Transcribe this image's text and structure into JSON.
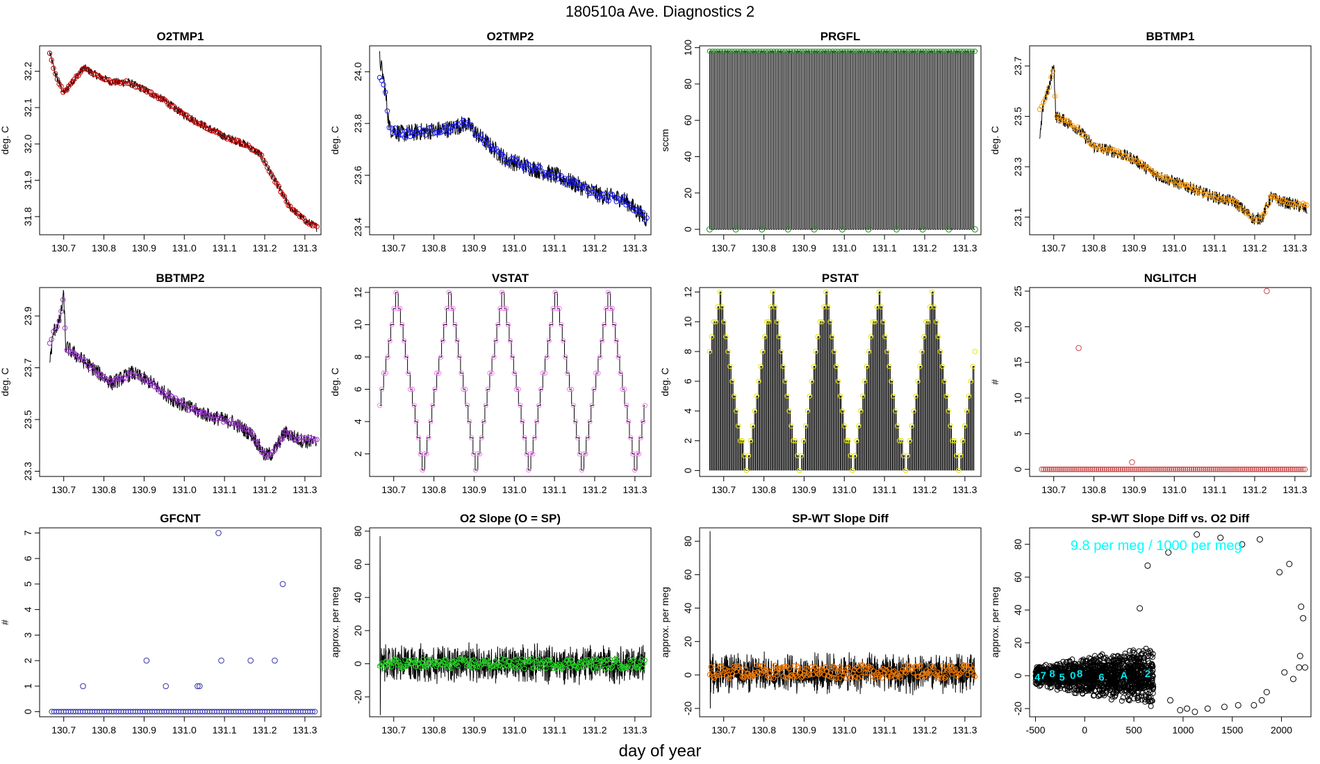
{
  "page": {
    "title": "180510a   Ave. Diagnostics 2",
    "xlabel": "day of year"
  },
  "chart_data": [
    {
      "type": "line",
      "title": "O2TMP1",
      "ylabel": "deg. C",
      "xlim": [
        130.64,
        131.34
      ],
      "ylim": [
        31.75,
        32.27
      ],
      "xticks": [
        "130.7",
        "130.8",
        "130.9",
        "131.0",
        "131.1",
        "131.2",
        "131.3"
      ],
      "yticks": [
        "31.8",
        "31.9",
        "32.0",
        "32.1",
        "32.2"
      ],
      "series": [
        {
          "name": "raw",
          "color": "#000000",
          "noise": 0.012,
          "style": "line",
          "x": [
            130.665,
            130.68,
            130.7,
            130.72,
            130.75,
            130.78,
            130.82,
            130.86,
            130.9,
            130.95,
            131.0,
            131.05,
            131.1,
            131.15,
            131.19,
            131.22,
            131.26,
            131.3,
            131.33
          ],
          "y": [
            32.25,
            32.19,
            32.14,
            32.17,
            32.21,
            32.19,
            32.17,
            32.17,
            32.15,
            32.12,
            32.08,
            32.05,
            32.02,
            32.0,
            31.97,
            31.91,
            31.83,
            31.79,
            31.77
          ]
        },
        {
          "name": "avg",
          "color": "#cc0000",
          "noise": 0.004,
          "style": "dense",
          "x": [
            130.665,
            130.68,
            130.7,
            130.72,
            130.75,
            130.78,
            130.82,
            130.86,
            130.9,
            130.95,
            131.0,
            131.05,
            131.1,
            131.15,
            131.19,
            131.22,
            131.26,
            131.3,
            131.33
          ],
          "y": [
            32.25,
            32.19,
            32.14,
            32.17,
            32.21,
            32.19,
            32.17,
            32.17,
            32.15,
            32.12,
            32.08,
            32.05,
            32.02,
            32.0,
            31.97,
            31.91,
            31.83,
            31.79,
            31.77
          ]
        }
      ]
    },
    {
      "type": "line",
      "title": "O2TMP2",
      "ylabel": "deg. C",
      "xlim": [
        130.64,
        131.34
      ],
      "ylim": [
        23.37,
        24.1
      ],
      "xticks": [
        "130.7",
        "130.8",
        "130.9",
        "131.0",
        "131.1",
        "131.2",
        "131.3"
      ],
      "yticks": [
        "23.4",
        "23.6",
        "23.8",
        "24.0"
      ],
      "series": [
        {
          "name": "raw",
          "color": "#000000",
          "noise": 0.035,
          "style": "line",
          "x": [
            130.665,
            130.675,
            130.69,
            130.72,
            130.78,
            130.84,
            130.88,
            130.92,
            130.98,
            131.04,
            131.1,
            131.16,
            131.22,
            131.27,
            131.3,
            131.33
          ],
          "y": [
            24.05,
            23.97,
            23.78,
            23.76,
            23.77,
            23.78,
            23.8,
            23.74,
            23.66,
            23.63,
            23.6,
            23.56,
            23.52,
            23.51,
            23.47,
            23.43
          ]
        },
        {
          "name": "avg",
          "color": "#1a1aff",
          "noise": 0.015,
          "style": "dense",
          "x": [
            130.665,
            130.675,
            130.69,
            130.72,
            130.78,
            130.84,
            130.88,
            130.92,
            130.98,
            131.04,
            131.1,
            131.16,
            131.22,
            131.27,
            131.3,
            131.33
          ],
          "y": [
            23.98,
            23.96,
            23.78,
            23.76,
            23.77,
            23.78,
            23.8,
            23.74,
            23.66,
            23.63,
            23.6,
            23.56,
            23.52,
            23.51,
            23.47,
            23.43
          ]
        }
      ]
    },
    {
      "type": "line",
      "title": "PRGFL",
      "ylabel": "sccm",
      "xlim": [
        130.64,
        131.34
      ],
      "ylim": [
        -3,
        101
      ],
      "xticks": [
        "130.7",
        "130.8",
        "130.9",
        "131.0",
        "131.1",
        "131.2",
        "131.3"
      ],
      "yticks": [
        "0",
        "20",
        "40",
        "60",
        "80",
        "100"
      ],
      "series": [
        {
          "name": "flow",
          "color": "#000000",
          "style": "square",
          "x_start": 130.665,
          "x_end": 131.325,
          "cycles": 110,
          "low": 0,
          "high": 98
        },
        {
          "name": "points",
          "color": "#228b22",
          "style": "points_top",
          "x_start": 130.665,
          "x_end": 131.325,
          "value": 98
        },
        {
          "name": "lows",
          "color": "#228b22",
          "style": "points_list",
          "x": [
            130.665,
            130.73,
            130.795,
            130.86,
            130.925,
            130.995,
            131.06,
            131.13,
            131.195,
            131.26,
            131.325
          ],
          "y": [
            0,
            0,
            0,
            0,
            0,
            0,
            0,
            0,
            0,
            0,
            0
          ]
        }
      ]
    },
    {
      "type": "line",
      "title": "BBTMP1",
      "ylabel": "deg. C",
      "xlim": [
        130.64,
        131.34
      ],
      "ylim": [
        23.03,
        23.78
      ],
      "xticks": [
        "130.7",
        "130.8",
        "130.9",
        "131.0",
        "131.1",
        "131.2",
        "131.3"
      ],
      "yticks": [
        "23.1",
        "23.3",
        "23.5",
        "23.7"
      ],
      "series": [
        {
          "name": "raw",
          "color": "#000000",
          "noise": 0.025,
          "style": "line",
          "x": [
            130.665,
            130.675,
            130.69,
            130.7,
            130.705,
            130.72,
            130.76,
            130.8,
            130.85,
            130.9,
            130.95,
            131.0,
            131.05,
            131.1,
            131.15,
            131.2,
            131.22,
            131.24,
            131.27,
            131.3,
            131.33
          ],
          "y": [
            23.4,
            23.56,
            23.62,
            23.72,
            23.5,
            23.49,
            23.45,
            23.38,
            23.36,
            23.33,
            23.27,
            23.24,
            23.21,
            23.18,
            23.16,
            23.09,
            23.1,
            23.18,
            23.16,
            23.15,
            23.13
          ]
        },
        {
          "name": "avg",
          "color": "#ff9900",
          "noise": 0.008,
          "style": "dense",
          "x": [
            130.665,
            130.675,
            130.69,
            130.7,
            130.705,
            130.72,
            130.76,
            130.8,
            130.85,
            130.9,
            130.95,
            131.0,
            131.05,
            131.1,
            131.15,
            131.2,
            131.22,
            131.24,
            131.27,
            131.3,
            131.33
          ],
          "y": [
            23.52,
            23.56,
            23.62,
            23.7,
            23.5,
            23.49,
            23.45,
            23.38,
            23.36,
            23.33,
            23.27,
            23.24,
            23.21,
            23.18,
            23.16,
            23.09,
            23.1,
            23.18,
            23.16,
            23.15,
            23.15
          ]
        }
      ]
    },
    {
      "type": "line",
      "title": "BBTMP2",
      "ylabel": "deg. C",
      "xlim": [
        130.64,
        131.34
      ],
      "ylim": [
        23.28,
        24.01
      ],
      "xticks": [
        "130.7",
        "130.8",
        "130.9",
        "131.0",
        "131.1",
        "131.2",
        "131.3"
      ],
      "yticks": [
        "23.3",
        "23.5",
        "23.7",
        "23.9"
      ],
      "series": [
        {
          "name": "raw",
          "color": "#000000",
          "noise": 0.03,
          "style": "line",
          "x": [
            130.665,
            130.675,
            130.69,
            130.7,
            130.705,
            130.73,
            130.77,
            130.82,
            130.87,
            130.92,
            130.97,
            131.02,
            131.07,
            131.12,
            131.17,
            131.2,
            131.22,
            131.25,
            131.29,
            131.33
          ],
          "y": [
            23.72,
            23.84,
            23.88,
            23.98,
            23.78,
            23.75,
            23.7,
            23.64,
            23.68,
            23.64,
            23.58,
            23.54,
            23.51,
            23.49,
            23.44,
            23.36,
            23.37,
            23.45,
            23.42,
            23.41
          ]
        },
        {
          "name": "avg",
          "color": "#9933cc",
          "noise": 0.01,
          "style": "dense",
          "x": [
            130.665,
            130.675,
            130.69,
            130.7,
            130.705,
            130.73,
            130.77,
            130.82,
            130.87,
            130.92,
            130.97,
            131.02,
            131.07,
            131.12,
            131.17,
            131.2,
            131.22,
            131.25,
            131.29,
            131.33
          ],
          "y": [
            23.8,
            23.84,
            23.88,
            23.97,
            23.78,
            23.75,
            23.7,
            23.64,
            23.68,
            23.64,
            23.58,
            23.54,
            23.51,
            23.49,
            23.44,
            23.36,
            23.37,
            23.45,
            23.42,
            23.43
          ]
        }
      ]
    },
    {
      "type": "line",
      "title": "VSTAT",
      "ylabel": "deg. C",
      "xlim": [
        130.64,
        131.34
      ],
      "ylim": [
        0.6,
        12.3
      ],
      "xticks": [
        "130.7",
        "130.8",
        "130.9",
        "131.0",
        "131.1",
        "131.2",
        "131.3"
      ],
      "yticks": [
        "2",
        "4",
        "6",
        "8",
        "10",
        "12"
      ],
      "series": [
        {
          "name": "steps",
          "color": "#000000",
          "style": "triangle_steps",
          "x_start": 130.665,
          "x_end": 131.325,
          "cycles": 5,
          "phase": 0.18,
          "min": 1,
          "max": 12
        },
        {
          "name": "points",
          "color": "#ee82ee",
          "style": "triangle_points",
          "x_start": 130.665,
          "x_end": 131.325,
          "cycles": 5,
          "phase": 0.18,
          "min": 1,
          "max": 12
        }
      ]
    },
    {
      "type": "line",
      "title": "PSTAT",
      "ylabel": "deg. C",
      "xlim": [
        130.64,
        131.34
      ],
      "ylim": [
        -0.4,
        12.3
      ],
      "xticks": [
        "130.7",
        "130.8",
        "130.9",
        "131.0",
        "131.1",
        "131.2",
        "131.3"
      ],
      "yticks": [
        "0",
        "2",
        "4",
        "6",
        "8",
        "10",
        "12"
      ],
      "series": [
        {
          "name": "steps",
          "color": "#000000",
          "style": "pulse_triangle",
          "x_start": 130.665,
          "x_end": 131.325,
          "cycles": 5,
          "phase": 0.32,
          "min": 0,
          "max": 12
        },
        {
          "name": "points",
          "color": "#e6e600",
          "style": "triangle_points",
          "x_start": 130.665,
          "x_end": 131.325,
          "cycles": 5,
          "phase": 0.32,
          "min": 0,
          "max": 12
        }
      ]
    },
    {
      "type": "scatter",
      "title": "NGLITCH",
      "ylabel": "#",
      "xlim": [
        130.64,
        131.34
      ],
      "ylim": [
        -1,
        25.5
      ],
      "xticks": [
        "130.7",
        "130.8",
        "130.9",
        "131.0",
        "131.1",
        "131.2",
        "131.3"
      ],
      "yticks": [
        "0",
        "5",
        "10",
        "15",
        "20",
        "25"
      ],
      "series": [
        {
          "name": "glitch",
          "color": "#cc4444",
          "style": "points_zero",
          "x_start": 130.67,
          "x_end": 131.325,
          "count": 130,
          "x": [
            130.762,
            130.895,
            131.23
          ],
          "y": [
            17,
            1,
            25
          ]
        }
      ]
    },
    {
      "type": "scatter",
      "title": "GFCNT",
      "ylabel": "#",
      "xlim": [
        130.64,
        131.34
      ],
      "ylim": [
        -0.2,
        7.2
      ],
      "xticks": [
        "130.7",
        "130.8",
        "130.9",
        "131.0",
        "131.1",
        "131.2",
        "131.3"
      ],
      "yticks": [
        "0",
        "1",
        "2",
        "3",
        "4",
        "5",
        "6",
        "7"
      ],
      "series": [
        {
          "name": "gf",
          "color": "#3333aa",
          "style": "points_zero",
          "x_start": 130.67,
          "x_end": 131.325,
          "count": 110,
          "x": [
            130.748,
            130.906,
            130.954,
            131.033,
            131.038,
            131.085,
            131.092,
            131.165,
            131.225,
            131.245
          ],
          "y": [
            1,
            2,
            1,
            1,
            1,
            7,
            2,
            2,
            2,
            5
          ]
        }
      ]
    },
    {
      "type": "line",
      "title": "O2 Slope (O = SP)",
      "ylabel": "approx. per meg",
      "xlim": [
        130.64,
        131.34
      ],
      "ylim": [
        -32,
        82
      ],
      "xticks": [
        "130.7",
        "130.8",
        "130.9",
        "131.0",
        "131.1",
        "131.2",
        "131.3"
      ],
      "yticks": [
        "-20",
        "0",
        "20",
        "40",
        "60",
        "80"
      ],
      "series": [
        {
          "name": "noise",
          "color": "#000000",
          "style": "noise_band",
          "x_start": 130.665,
          "x_end": 131.325,
          "center": 0,
          "amp": 9,
          "spike_x": 130.665,
          "spike_hi": 77,
          "spike_lo": -31
        },
        {
          "name": "avg",
          "color": "#22cc22",
          "style": "noise_points",
          "x_start": 130.665,
          "x_end": 131.325,
          "center": 0,
          "amp": 3
        }
      ]
    },
    {
      "type": "line",
      "title": "SP-WT Slope Diff",
      "ylabel": "approx. per meg",
      "xlim": [
        130.64,
        131.34
      ],
      "ylim": [
        -25,
        88
      ],
      "xticks": [
        "130.7",
        "130.8",
        "130.9",
        "131.0",
        "131.1",
        "131.2",
        "131.3"
      ],
      "yticks": [
        "-20",
        "0",
        "20",
        "40",
        "60",
        "80"
      ],
      "series": [
        {
          "name": "noise",
          "color": "#000000",
          "style": "noise_band",
          "x_start": 130.665,
          "x_end": 131.325,
          "center": 1,
          "amp": 9,
          "spike_x": 130.665,
          "spike_hi": 86,
          "spike_lo": -20
        },
        {
          "name": "avg",
          "color": "#ee7700",
          "style": "noise_points",
          "x_start": 130.665,
          "x_end": 131.325,
          "center": 2,
          "amp": 4
        }
      ]
    },
    {
      "type": "scatter",
      "title": "SP-WT Slope Diff vs. O2 Diff",
      "ylabel": "approx. per meg",
      "xlim": [
        -560,
        2300
      ],
      "ylim": [
        -25,
        90
      ],
      "xticks": [
        "-500",
        "0",
        "500",
        "1000",
        "1500",
        "2000"
      ],
      "yticks": [
        "-20",
        "0",
        "20",
        "40",
        "60",
        "80"
      ],
      "annotation": "9.8 per meg / 1000 per meg",
      "cluster_labels": [
        "4",
        "7",
        "8",
        "5",
        "0",
        "8",
        "6",
        "A",
        "2"
      ],
      "series": [
        {
          "name": "cluster",
          "color": "#000000",
          "style": "cluster",
          "x_start": -500,
          "x_end": 700,
          "center": 0,
          "amp": 12
        },
        {
          "name": "outliers",
          "color": "#000000",
          "style": "points_list",
          "x": [
            560,
            640,
            850,
            870,
            970,
            1040,
            1120,
            1140,
            1250,
            1380,
            1420,
            1560,
            1600,
            1720,
            1780,
            1800,
            1850,
            1980,
            2030,
            2080,
            2120,
            2180,
            2190,
            2200,
            2220,
            2240
          ],
          "y": [
            41,
            67,
            75,
            -15,
            -21,
            -20,
            -22,
            86,
            -20,
            84,
            -19,
            -18,
            80,
            -18,
            83,
            -15,
            -10,
            63,
            2,
            68,
            -2,
            5,
            12,
            42,
            35,
            5
          ]
        }
      ]
    }
  ]
}
